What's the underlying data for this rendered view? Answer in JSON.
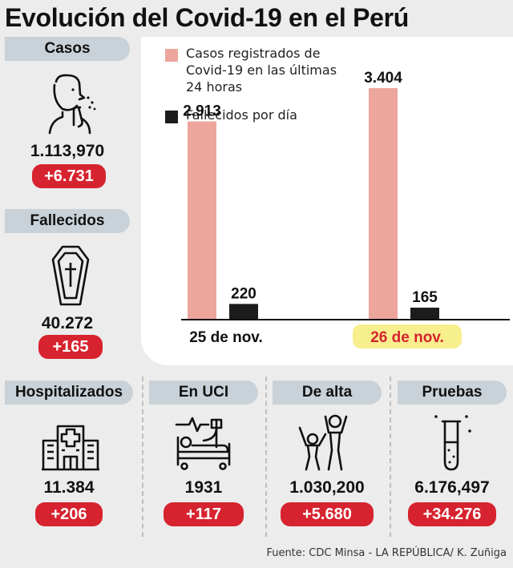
{
  "title": "Evolución del Covid-19 en el Perú",
  "stats": {
    "casos": {
      "label": "Casos",
      "value": "1.113,970",
      "delta": "+6.731"
    },
    "fallecidos": {
      "label": "Fallecidos",
      "value": "40.272",
      "delta": "+165"
    },
    "hospitalizados": {
      "label": "Hospitalizados",
      "value": "11.384",
      "delta": "+206"
    },
    "uci": {
      "label": "En UCI",
      "value": "1931",
      "delta": "+117"
    },
    "alta": {
      "label": "De alta",
      "value": "1.030,200",
      "delta": "+5.680"
    },
    "pruebas": {
      "label": "Pruebas",
      "value": "6.176,497",
      "delta": "+34.276"
    }
  },
  "icons": {
    "casos": "coughing-person-icon",
    "fallecidos": "coffin-icon",
    "hospitalizados": "hospital-building-icon",
    "uci": "icu-bed-icon",
    "alta": "celebrating-people-icon",
    "pruebas": "test-tube-icon"
  },
  "colors": {
    "cases_bar": "#eda69c",
    "deaths_bar": "#1c1c1c",
    "badge": "#d7232f",
    "pill": "#c9d2d8",
    "highlight": "#f7ee8e"
  },
  "chart_data": {
    "type": "bar",
    "categories": [
      "25 de nov.",
      "26 de nov."
    ],
    "highlighted_category": "26 de nov.",
    "series": [
      {
        "name": "Casos registrados de Covid-19 en las últimas 24 horas",
        "values": [
          2913,
          3404
        ],
        "labels": [
          "2.913",
          "3.404"
        ],
        "color": "#eda69c"
      },
      {
        "name": "Fallecidos por día",
        "values": [
          220,
          165
        ],
        "labels": [
          "220",
          "165"
        ],
        "color": "#1c1c1c"
      }
    ],
    "ylim": [
      0,
      3404
    ],
    "grid": false,
    "legend": "top-left"
  },
  "legend": {
    "cases": [
      "Casos registrados de",
      "Covid-19 en las últimas",
      "24 horas"
    ],
    "deaths": "Fallecidos por día"
  },
  "source": "Fuente: CDC Minsa - LA REPÚBLICA/ K. Zuñiga"
}
